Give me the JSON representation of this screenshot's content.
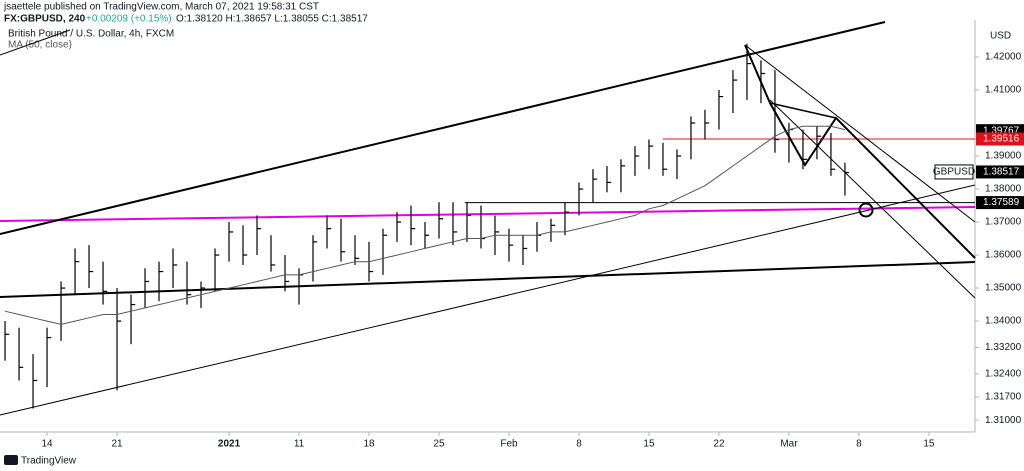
{
  "header": {
    "author": "jsaettele published on TradingView.com, March 07, 2021 19:58:31 CST",
    "symbol": "FX:GBPUSD, 240",
    "change": "+0.00209 (+0.15%)",
    "ohlc": "O:1.38120 H:1.38657 L:1.38055 C:1.38517",
    "instrument": "British Pound / U.S. Dollar, 4h, FXCM",
    "currency": "USD",
    "brand": "TradingView"
  },
  "chart_data": {
    "type": "ohlc",
    "color": "#000000",
    "x": [
      -3,
      -2,
      -1,
      0,
      1,
      2,
      3,
      4,
      5,
      6,
      7,
      8,
      9,
      10,
      11,
      12,
      13,
      14,
      15,
      16,
      17,
      18,
      19,
      20,
      21,
      22,
      23,
      24,
      25,
      26,
      27,
      28,
      29,
      30,
      31,
      32,
      33,
      34,
      35,
      36,
      37,
      38,
      39,
      40,
      41,
      42,
      43,
      44,
      45,
      46,
      47,
      48,
      49,
      50,
      51,
      52,
      53,
      54,
      55,
      56,
      57
    ],
    "high": [
      1.34,
      1.338,
      1.33,
      1.338,
      1.352,
      1.362,
      1.363,
      1.358,
      1.35,
      1.348,
      1.356,
      1.358,
      1.362,
      1.358,
      1.352,
      1.362,
      1.37,
      1.369,
      1.372,
      1.366,
      1.36,
      1.356,
      1.366,
      1.372,
      1.371,
      1.366,
      1.364,
      1.368,
      1.373,
      1.375,
      1.37,
      1.376,
      1.376,
      1.376,
      1.375,
      1.372,
      1.368,
      1.366,
      1.37,
      1.371,
      1.376,
      1.382,
      1.386,
      1.387,
      1.389,
      1.393,
      1.395,
      1.394,
      1.392,
      1.402,
      1.404,
      1.41,
      1.416,
      1.424,
      1.419,
      1.416,
      1.4,
      1.398,
      1.399,
      1.397,
      1.388
    ],
    "low": [
      1.328,
      1.322,
      1.3135,
      1.32,
      1.334,
      1.348,
      1.35,
      1.345,
      1.319,
      1.333,
      1.344,
      1.346,
      1.35,
      1.345,
      1.344,
      1.349,
      1.358,
      1.357,
      1.36,
      1.355,
      1.349,
      1.345,
      1.352,
      1.362,
      1.358,
      1.357,
      1.352,
      1.354,
      1.364,
      1.363,
      1.362,
      1.365,
      1.363,
      1.364,
      1.362,
      1.36,
      1.358,
      1.357,
      1.361,
      1.364,
      1.366,
      1.372,
      1.376,
      1.379,
      1.379,
      1.384,
      1.386,
      1.384,
      1.383,
      1.389,
      1.395,
      1.398,
      1.403,
      1.407,
      1.406,
      1.391,
      1.388,
      1.386,
      1.389,
      1.384,
      1.378
    ],
    "close": [
      1.336,
      1.326,
      1.322,
      1.335,
      1.35,
      1.358,
      1.355,
      1.349,
      1.34,
      1.345,
      1.352,
      1.355,
      1.357,
      1.348,
      1.35,
      1.36,
      1.367,
      1.36,
      1.368,
      1.357,
      1.352,
      1.354,
      1.364,
      1.368,
      1.361,
      1.359,
      1.355,
      1.366,
      1.37,
      1.368,
      1.366,
      1.371,
      1.367,
      1.372,
      1.365,
      1.367,
      1.363,
      1.362,
      1.366,
      1.369,
      1.373,
      1.38,
      1.383,
      1.382,
      1.387,
      1.39,
      1.393,
      1.386,
      1.39,
      1.4,
      1.4,
      1.408,
      1.413,
      1.418,
      1.415,
      1.395,
      1.398,
      1.389,
      1.396,
      1.386,
      1.385
    ],
    "ma": {
      "name": "MA (50, close)",
      "color": "#555555",
      "values": [
        1.343,
        1.342,
        1.341,
        1.34,
        1.339,
        1.34,
        1.341,
        1.342,
        1.342,
        1.343,
        1.344,
        1.345,
        1.346,
        1.347,
        1.348,
        1.349,
        1.35,
        1.351,
        1.352,
        1.353,
        1.354,
        1.354,
        1.355,
        1.356,
        1.357,
        1.358,
        1.358,
        1.359,
        1.36,
        1.361,
        1.362,
        1.363,
        1.364,
        1.365,
        1.365,
        1.366,
        1.366,
        1.366,
        1.366,
        1.367,
        1.367,
        1.368,
        1.369,
        1.37,
        1.371,
        1.372,
        1.374,
        1.375,
        1.377,
        1.379,
        1.381,
        1.384,
        1.387,
        1.39,
        1.393,
        1.396,
        1.398,
        1.399,
        1.399,
        1.399,
        1.398
      ]
    },
    "xlim": [
      -3.36,
      66.29
    ],
    "xticks": [
      {
        "value": 0,
        "label": "14"
      },
      {
        "value": 5,
        "label": "21"
      },
      {
        "value": 13,
        "label": "2021"
      },
      {
        "value": 18,
        "label": "11"
      },
      {
        "value": 23,
        "label": "18"
      },
      {
        "value": 28,
        "label": "25"
      },
      {
        "value": 33,
        "label": "Feb"
      },
      {
        "value": 38,
        "label": "8"
      },
      {
        "value": 43,
        "label": "15"
      },
      {
        "value": 48,
        "label": "22"
      },
      {
        "value": 53,
        "label": "Mar"
      },
      {
        "value": 58,
        "label": "8"
      },
      {
        "value": 63,
        "label": "15"
      }
    ],
    "ylim": [
      1.3064,
      1.4312
    ],
    "yticks": [
      {
        "value": 1.42,
        "label": "1.42000"
      },
      {
        "value": 1.41,
        "label": "1.41000"
      },
      {
        "value": 1.39,
        "label": "1.39000"
      },
      {
        "value": 1.38,
        "label": "1.38000"
      },
      {
        "value": 1.37,
        "label": "1.37000"
      },
      {
        "value": 1.36,
        "label": "1.36000"
      },
      {
        "value": 1.35,
        "label": "1.35000"
      },
      {
        "value": 1.34,
        "label": "1.34000"
      },
      {
        "value": 1.332,
        "label": "1.33200"
      },
      {
        "value": 1.324,
        "label": "1.32400"
      },
      {
        "value": 1.317,
        "label": "1.31700"
      },
      {
        "value": 1.31,
        "label": "1.31000"
      }
    ],
    "markers": [
      {
        "value": 1.39767,
        "color": "#000000"
      },
      {
        "value": 1.39516,
        "color": "#e0101a"
      },
      {
        "value": 1.37589,
        "color": "#000000"
      }
    ],
    "last_price": {
      "name": "GBPUSD",
      "value": 1.38517,
      "color": "#000000"
    }
  }
}
